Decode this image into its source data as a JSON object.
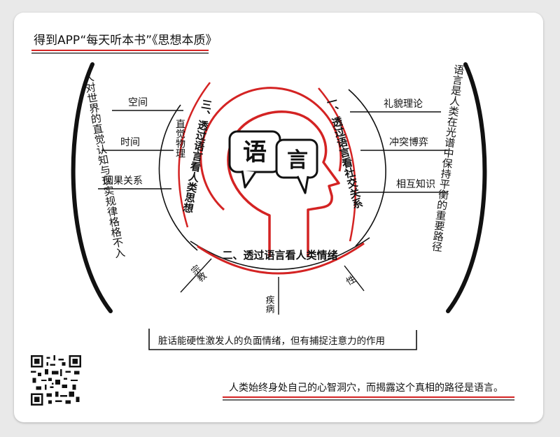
{
  "header": {
    "title": "得到APP“每天听本书”《思想本质》"
  },
  "center": {
    "bubble_left": "语",
    "bubble_right": "言"
  },
  "section_1": {
    "label": "一、透过语言看社交关系",
    "branches": [
      "礼貌理论",
      "冲突博弈",
      "相互知识"
    ]
  },
  "section_2": {
    "label": "二、透过语言看人类情绪",
    "branches": [
      "宗教",
      "疾病",
      "性"
    ],
    "note": "脏话能硬性激发人的负面情绪，但有捕捉注意力的作用"
  },
  "section_3": {
    "label": "三、透过语言看人类思想",
    "sub": "直觉物理",
    "branches": [
      "空间",
      "时间",
      "因果关系"
    ]
  },
  "left_arc_text": "人对世界的直觉认知与现实规律格格不入",
  "right_arc_text": "语言是人类在光谱中保持平衡的重要路径",
  "footer": {
    "quote": "人类始终身处自己的心智洞穴，而揭露这个真相的路径是语言。"
  },
  "colors": {
    "accent": "#d42323",
    "ink": "#111111"
  }
}
